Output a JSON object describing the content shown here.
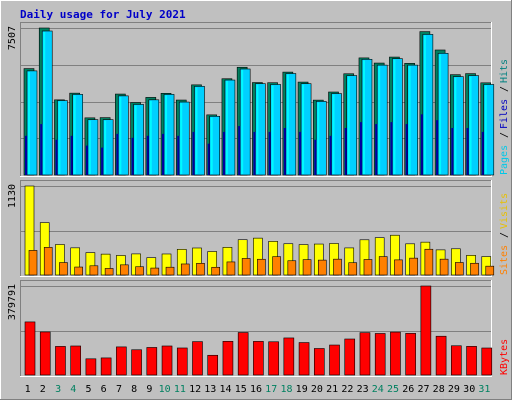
{
  "chart_data": {
    "type": "bar",
    "title": "Daily usage for July 2021",
    "categories": [
      "1",
      "2",
      "3",
      "4",
      "5",
      "6",
      "7",
      "8",
      "9",
      "10",
      "11",
      "12",
      "13",
      "14",
      "15",
      "16",
      "17",
      "18",
      "19",
      "20",
      "21",
      "22",
      "23",
      "24",
      "25",
      "26",
      "27",
      "28",
      "29",
      "30",
      "31"
    ],
    "weekend_days": [
      "3",
      "4",
      "10",
      "11",
      "17",
      "18",
      "24",
      "25",
      "31"
    ],
    "panels": [
      {
        "id": "hits-files-pages",
        "max_label": "7507",
        "ylim": [
          0,
          7507
        ],
        "legend": [
          {
            "text": "Pages",
            "color": "#00c8e8"
          },
          {
            "text": "Files",
            "color": "#0000c0"
          },
          {
            "text": "Hits",
            "color": "#008080"
          }
        ],
        "series": [
          {
            "name": "Hits",
            "color": "#008060",
            "values": [
              5435,
              7507,
              3838,
              4180,
              2919,
              2931,
              4134,
              3701,
              3963,
              4171,
              3828,
              4604,
              3071,
              4916,
              5503,
              4722,
              4713,
              5255,
              4745,
              3824,
              4238,
              5170,
              5980,
              5717,
              6023,
              5702,
              7323,
              6384,
              5124,
              5178,
              4708
            ]
          },
          {
            "name": "Files",
            "color": "#00d0ff",
            "values": [
              5317,
              7354,
              3801,
              4116,
              2828,
              2828,
              4041,
              3604,
              3839,
              4116,
              3725,
              4526,
              2998,
              4849,
              5414,
              4664,
              4622,
              5182,
              4664,
              3758,
              4159,
              5078,
              5908,
              5611,
              5942,
              5611,
              7180,
              6215,
              5025,
              5078,
              4622
            ]
          },
          {
            "name": "Pages",
            "color": "#0000a0",
            "values": [
              2000,
              2600,
              1800,
              2000,
              1500,
              1400,
              2100,
              1900,
              2000,
              2100,
              2000,
              2200,
              1600,
              2200,
              2500,
              2200,
              2200,
              2400,
              2200,
              1800,
              2000,
              2400,
              2700,
              2600,
              2700,
              2600,
              3100,
              2800,
              2400,
              2400,
              2200
            ]
          }
        ]
      },
      {
        "id": "visits-sites",
        "max_label": "1130",
        "ylim": [
          0,
          1130
        ],
        "legend": [
          {
            "text": "Sites",
            "color": "#ff8000"
          },
          {
            "text": "Visits",
            "color": "#e8c000"
          }
        ],
        "series": [
          {
            "name": "Visits",
            "color": "#ffff00",
            "values": [
              1130,
              665,
              387,
              345,
              284,
              265,
              248,
              268,
              220,
              267,
              326,
              343,
              298,
              351,
              448,
              468,
              427,
              397,
              386,
              393,
              400,
              344,
              447,
              474,
              505,
              396,
              417,
              319,
              333,
              250,
              234
            ]
          },
          {
            "name": "Sites",
            "color": "#ff8000",
            "values": [
              312,
              351,
              158,
              101,
              117,
              83,
              129,
              105,
              88,
              99,
              140,
              148,
              98,
              166,
              210,
              200,
              233,
              181,
              195,
              189,
              201,
              156,
              197,
              234,
              192,
              214,
              327,
              201,
              159,
              149,
              112
            ]
          }
        ]
      },
      {
        "id": "kbytes",
        "max_label": "379791",
        "ylim": [
          0,
          379791
        ],
        "legend": [
          {
            "text": "KBytes",
            "color": "#ff0000"
          }
        ],
        "series": [
          {
            "name": "KBytes",
            "color": "#ff0000",
            "values": [
              226500,
              183700,
              122000,
              123800,
              69100,
              72900,
              119900,
              107700,
              117500,
              123800,
              115300,
              142500,
              84200,
              143700,
              181300,
              143400,
              141800,
              158100,
              138500,
              113100,
              127900,
              153600,
              180800,
              177200,
              183100,
              177700,
              379791,
              165500,
              124800,
              122300,
              115200
            ]
          }
        ]
      }
    ]
  }
}
